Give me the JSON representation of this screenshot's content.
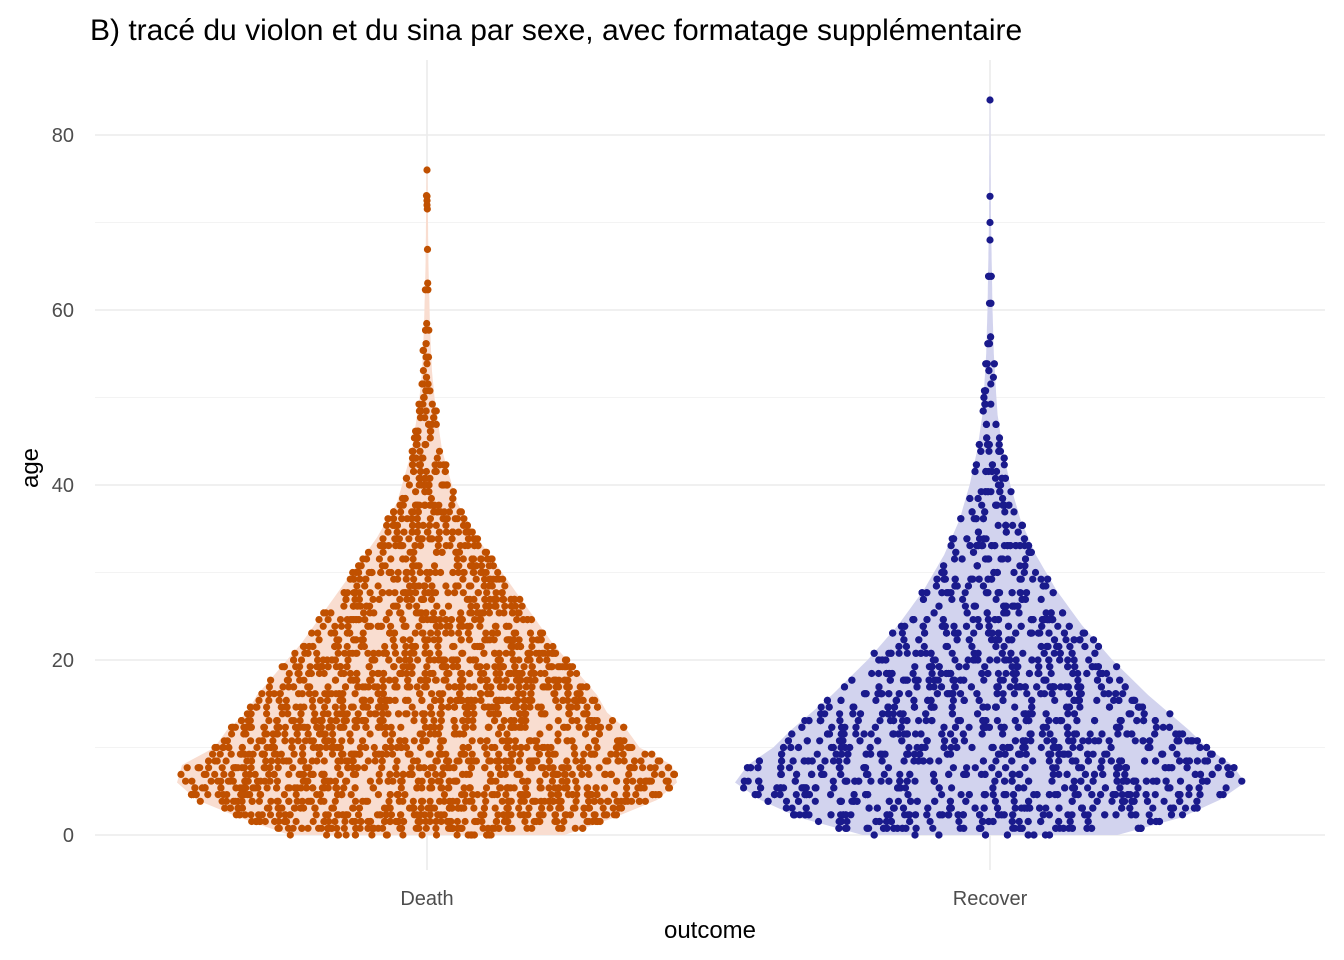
{
  "chart_data": {
    "type": "violin-sina",
    "title": "B) tracé du violon et du sina par sexe, avec formatage supplémentaire",
    "xlabel": "outcome",
    "ylabel": "age",
    "categories": [
      "Death",
      "Recover"
    ],
    "ylim": [
      0,
      85
    ],
    "yticks": [
      0,
      20,
      40,
      60,
      80
    ],
    "grid": true,
    "legend": "none",
    "colors": {
      "Death": {
        "point": "#c05000",
        "violin": "#f9ddd0"
      },
      "Recover": {
        "point": "#1a1a8c",
        "violin": "#d2d3ee"
      }
    },
    "series": [
      {
        "name": "Death",
        "n_points_approx": 2500,
        "max": 76,
        "density_by_age": [
          [
            0,
            0.55
          ],
          [
            2,
            0.75
          ],
          [
            4,
            0.92
          ],
          [
            6,
            1.0
          ],
          [
            8,
            0.98
          ],
          [
            10,
            0.85
          ],
          [
            12,
            0.8
          ],
          [
            14,
            0.72
          ],
          [
            16,
            0.68
          ],
          [
            18,
            0.62
          ],
          [
            20,
            0.56
          ],
          [
            22,
            0.5
          ],
          [
            24,
            0.45
          ],
          [
            26,
            0.4
          ],
          [
            28,
            0.35
          ],
          [
            30,
            0.3
          ],
          [
            32,
            0.25
          ],
          [
            34,
            0.2
          ],
          [
            36,
            0.16
          ],
          [
            38,
            0.12
          ],
          [
            40,
            0.1
          ],
          [
            42,
            0.08
          ],
          [
            44,
            0.06
          ],
          [
            46,
            0.05
          ],
          [
            48,
            0.04
          ],
          [
            50,
            0.03
          ],
          [
            53,
            0.02
          ],
          [
            58,
            0.012
          ],
          [
            65,
            0.006
          ],
          [
            70,
            0.004
          ],
          [
            76,
            0.002
          ]
        ],
        "outliers": [
          76,
          73,
          72.5,
          72
        ]
      },
      {
        "name": "Recover",
        "n_points_approx": 2000,
        "max": 84,
        "density_by_age": [
          [
            0,
            0.5
          ],
          [
            2,
            0.75
          ],
          [
            4,
            0.9
          ],
          [
            6,
            1.0
          ],
          [
            8,
            0.95
          ],
          [
            10,
            0.85
          ],
          [
            12,
            0.78
          ],
          [
            14,
            0.7
          ],
          [
            16,
            0.62
          ],
          [
            18,
            0.55
          ],
          [
            20,
            0.48
          ],
          [
            22,
            0.42
          ],
          [
            24,
            0.36
          ],
          [
            26,
            0.31
          ],
          [
            28,
            0.26
          ],
          [
            30,
            0.22
          ],
          [
            32,
            0.18
          ],
          [
            34,
            0.15
          ],
          [
            36,
            0.12
          ],
          [
            38,
            0.1
          ],
          [
            40,
            0.08
          ],
          [
            42,
            0.065
          ],
          [
            44,
            0.05
          ],
          [
            46,
            0.04
          ],
          [
            48,
            0.03
          ],
          [
            50,
            0.025
          ],
          [
            55,
            0.015
          ],
          [
            60,
            0.01
          ],
          [
            65,
            0.007
          ],
          [
            70,
            0.004
          ],
          [
            73,
            0.003
          ],
          [
            84,
            0.001
          ]
        ],
        "outliers": [
          84,
          73,
          70,
          68
        ]
      }
    ]
  }
}
